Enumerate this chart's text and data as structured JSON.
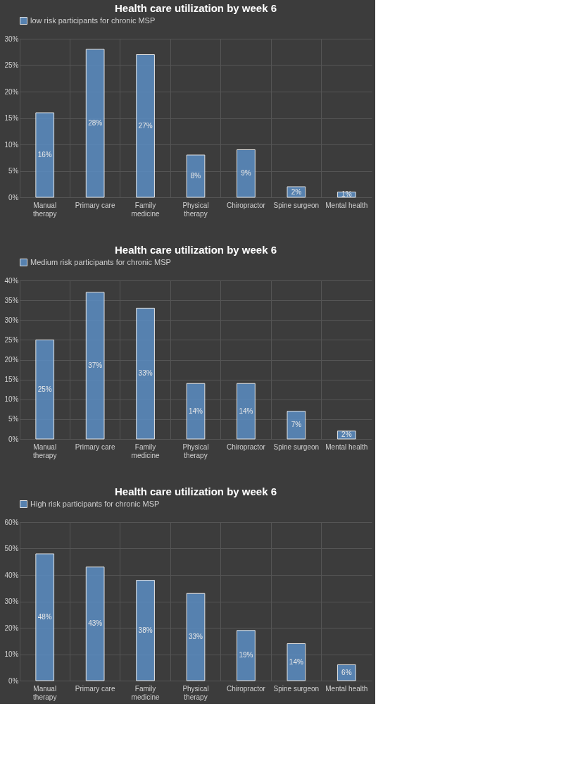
{
  "chart_data": [
    {
      "type": "bar",
      "title": "Health care utilization by week 6",
      "categories": [
        "Manual therapy",
        "Primary care",
        "Family medicine",
        "Physical therapy",
        "Chiropractor",
        "Spine surgeon",
        "Mental health"
      ],
      "series": [
        {
          "name": "low risk participants for chronic MSP",
          "color": "#5b8ec4",
          "values": [
            16,
            28,
            27,
            8,
            9,
            2,
            1
          ],
          "value_labels": [
            "16%",
            "28%",
            "27%",
            "8%",
            "9%",
            "2%",
            "1%"
          ]
        }
      ],
      "ylim": [
        0,
        30
      ],
      "yticks": [
        {
          "value": 0,
          "label": "0%"
        },
        {
          "value": 5,
          "label": "5%"
        },
        {
          "value": 10,
          "label": "10%"
        },
        {
          "value": 15,
          "label": "15%"
        },
        {
          "value": 20,
          "label": "20%"
        },
        {
          "value": 25,
          "label": "25%"
        },
        {
          "value": 30,
          "label": "30%"
        }
      ],
      "grid": true,
      "legend": "top"
    },
    {
      "type": "bar",
      "title": "Health care utilization by week 6",
      "categories": [
        "Manual therapy",
        "Primary care",
        "Family medicine",
        "Physical therapy",
        "Chiropractor",
        "Spine surgeon",
        "Mental health"
      ],
      "series": [
        {
          "name": "Medium risk participants for chronic MSP",
          "color": "#5b8ec4",
          "values": [
            25,
            37,
            33,
            14,
            14,
            7,
            2
          ],
          "value_labels": [
            "25%",
            "37%",
            "33%",
            "14%",
            "14%",
            "7%",
            "2%"
          ]
        }
      ],
      "ylim": [
        0,
        40
      ],
      "yticks": [
        {
          "value": 0,
          "label": "0%"
        },
        {
          "value": 5,
          "label": "5%"
        },
        {
          "value": 10,
          "label": "10%"
        },
        {
          "value": 15,
          "label": "15%"
        },
        {
          "value": 20,
          "label": "20%"
        },
        {
          "value": 25,
          "label": "25%"
        },
        {
          "value": 30,
          "label": "30%"
        },
        {
          "value": 35,
          "label": "35%"
        },
        {
          "value": 40,
          "label": "40%"
        }
      ],
      "grid": true,
      "legend": "top"
    },
    {
      "type": "bar",
      "title": "Health care utilization by week 6",
      "categories": [
        "Manual therapy",
        "Primary care",
        "Family medicine",
        "Physical therapy",
        "Chiropractor",
        "Spine surgeon",
        "Mental health"
      ],
      "series": [
        {
          "name": "High risk participants for chronic MSP",
          "color": "#5b8ec4",
          "values": [
            48,
            43,
            38,
            33,
            19,
            14,
            6
          ],
          "value_labels": [
            "48%",
            "43%",
            "38%",
            "33%",
            "19%",
            "14%",
            "6%"
          ]
        }
      ],
      "ylim": [
        0,
        60
      ],
      "yticks": [
        {
          "value": 0,
          "label": "0%"
        },
        {
          "value": 10,
          "label": "10%"
        },
        {
          "value": 20,
          "label": "20%"
        },
        {
          "value": 30,
          "label": "30%"
        },
        {
          "value": 40,
          "label": "40%"
        },
        {
          "value": 50,
          "label": "50%"
        },
        {
          "value": 60,
          "label": "60%"
        }
      ],
      "grid": true,
      "legend": "top"
    }
  ]
}
